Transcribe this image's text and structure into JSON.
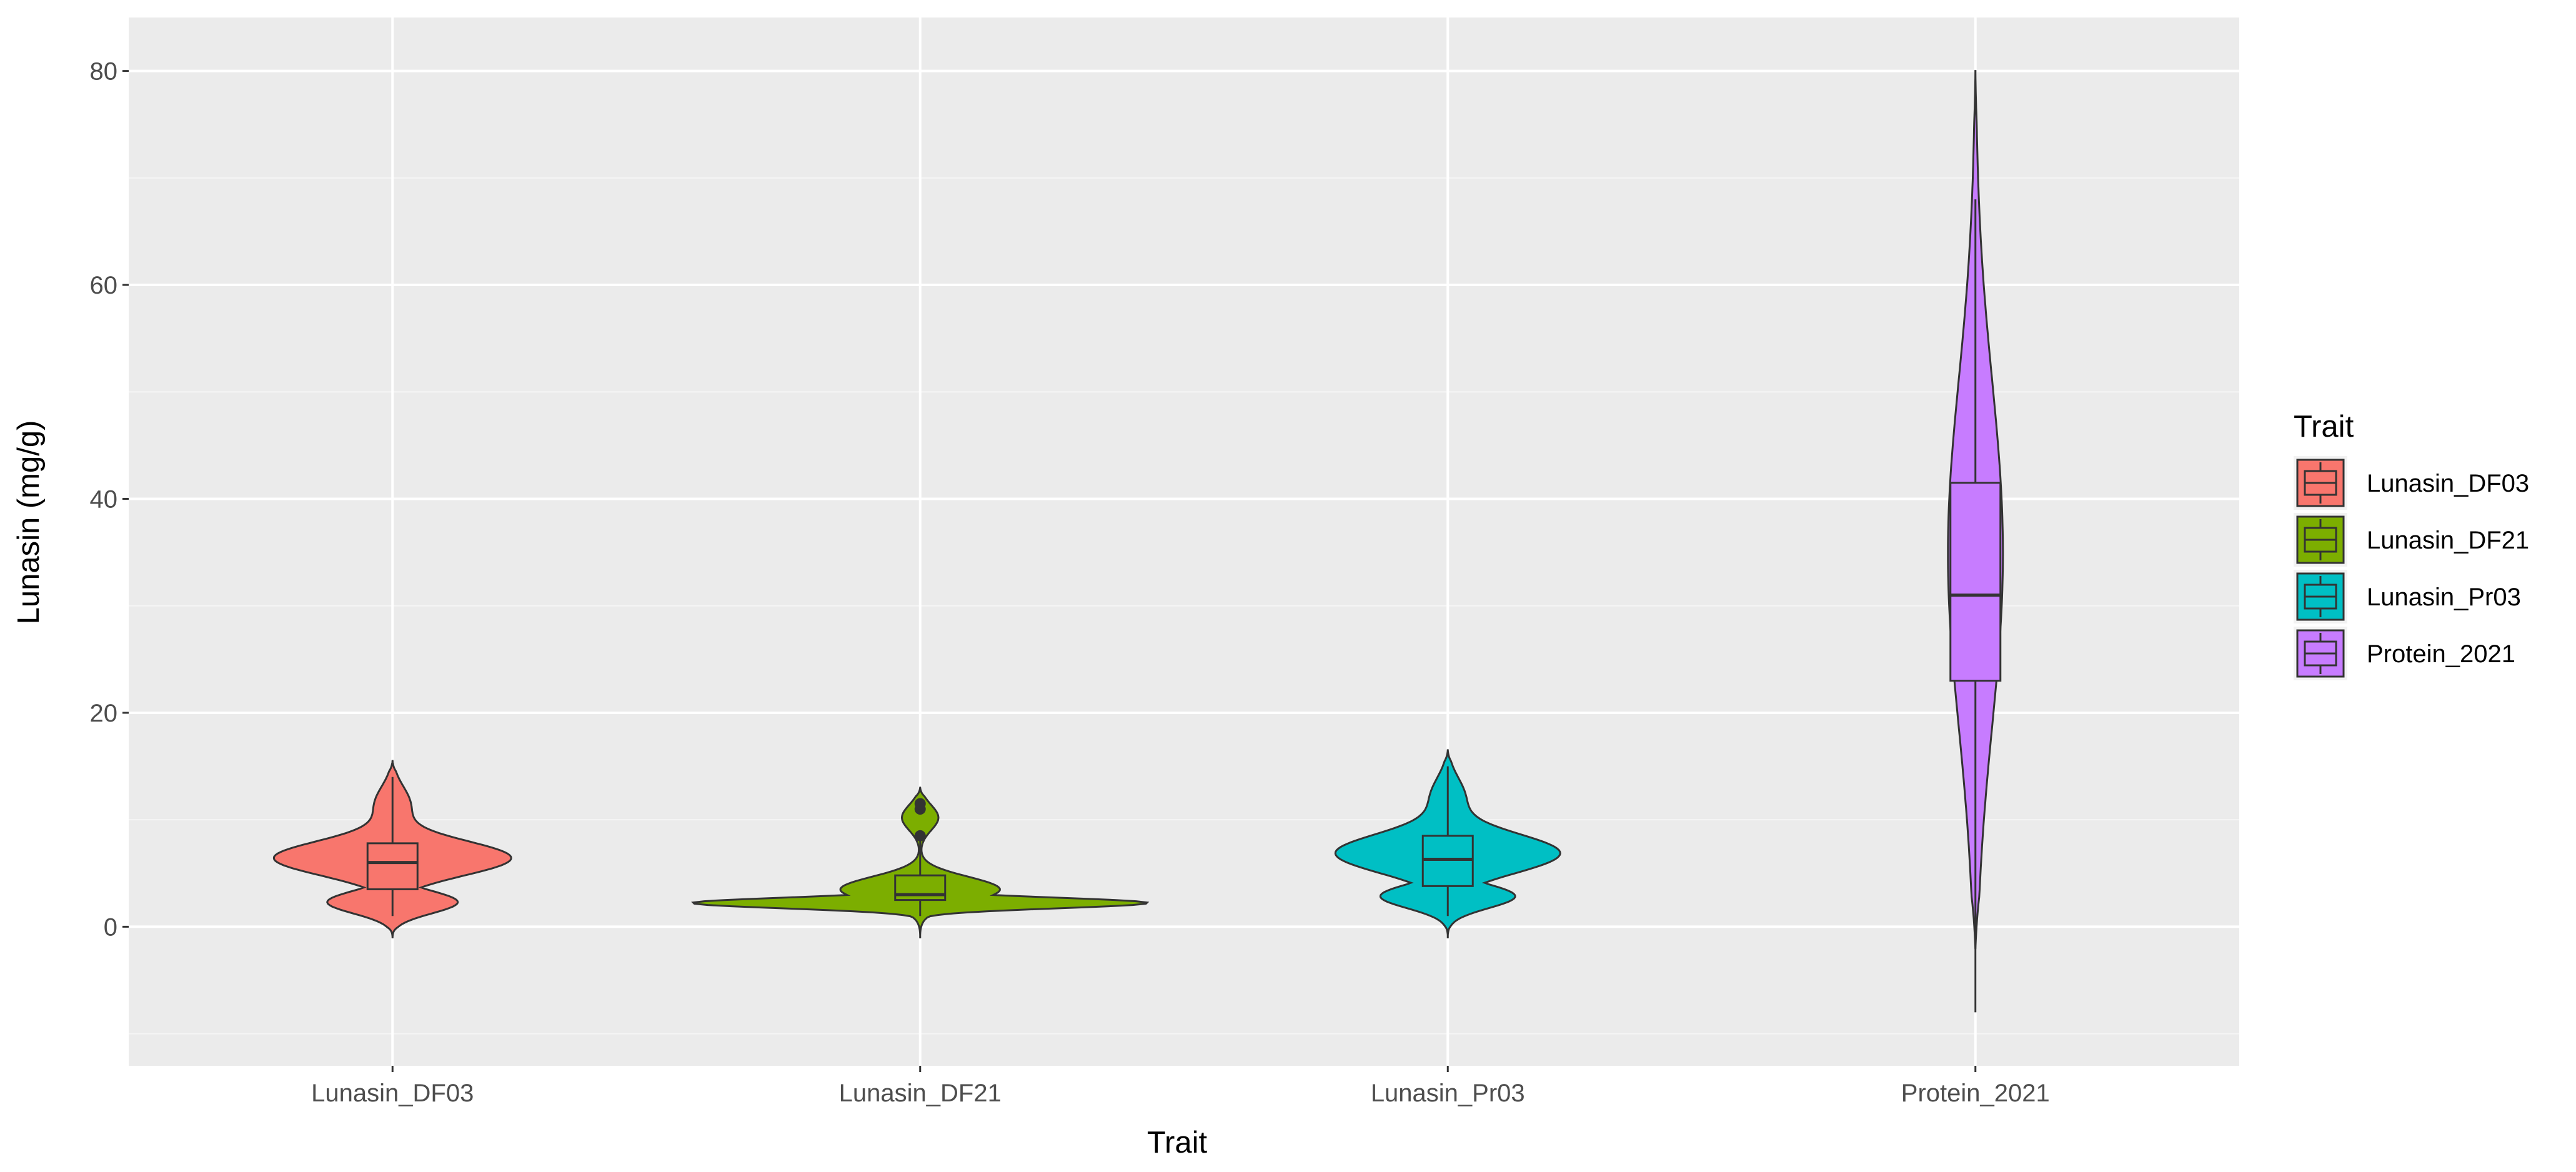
{
  "chart_data": {
    "type": "violin",
    "title": "",
    "xlabel": "Trait",
    "ylabel": "Lunasin (mg/g)",
    "ylim": [
      -13,
      85
    ],
    "yticks": [
      0,
      20,
      40,
      60,
      80
    ],
    "grid": true,
    "legend": {
      "title": "Trait",
      "position": "right"
    },
    "categories": [
      "Lunasin_DF03",
      "Lunasin_DF21",
      "Lunasin_Pr03",
      "Protein_2021"
    ],
    "series": [
      {
        "name": "Lunasin_DF03",
        "color": "#F8766D",
        "violin_range": [
          -1,
          15.5
        ],
        "box": {
          "whisker_low": 1,
          "q1": 3.5,
          "median": 6,
          "q3": 7.8,
          "whisker_high": 14
        },
        "outliers": []
      },
      {
        "name": "Lunasin_DF21",
        "color": "#7CAE00",
        "violin_range": [
          -1,
          13
        ],
        "box": {
          "whisker_low": 1,
          "q1": 2.5,
          "median": 3,
          "q3": 4.8,
          "whisker_high": 8
        },
        "outliers": [
          8.5,
          11,
          11.5
        ]
      },
      {
        "name": "Lunasin_Pr03",
        "color": "#00BFC4",
        "violin_range": [
          -1,
          16.5
        ],
        "box": {
          "whisker_low": 1,
          "q1": 3.8,
          "median": 6.3,
          "q3": 8.5,
          "whisker_high": 15
        },
        "outliers": []
      },
      {
        "name": "Protein_2021",
        "color": "#C77CFF",
        "violin_range": [
          -2,
          80
        ],
        "box": {
          "whisker_low": -8,
          "q1": 23,
          "median": 31,
          "q3": 41.5,
          "whisker_high": 68
        },
        "outliers": []
      }
    ]
  }
}
